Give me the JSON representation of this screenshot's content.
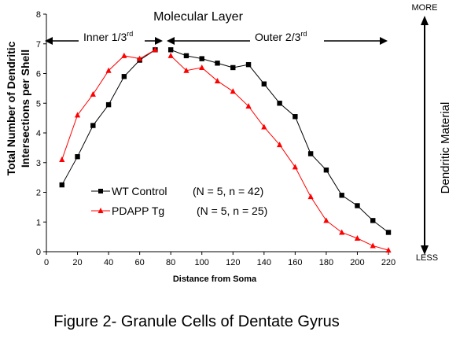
{
  "caption": "Figure 2- Granule Cells of Dentate Gyrus",
  "chart_data": {
    "type": "line",
    "title": "Molecular Layer",
    "xlabel": "Distance from Soma",
    "ylabel_line1": "Total Number of Dendritic",
    "ylabel_line2": "Intersections per Shell",
    "xlim": [
      0,
      220
    ],
    "ylim": [
      0,
      8
    ],
    "xticks": [
      0,
      20,
      40,
      60,
      80,
      100,
      120,
      140,
      160,
      180,
      200,
      220
    ],
    "yticks": [
      0,
      1,
      2,
      3,
      4,
      5,
      6,
      7,
      8
    ],
    "x": [
      10,
      20,
      30,
      40,
      50,
      60,
      70,
      80,
      90,
      100,
      110,
      120,
      130,
      140,
      150,
      160,
      170,
      180,
      190,
      200,
      210,
      220
    ],
    "segment_break_after_x": 70,
    "series": [
      {
        "name": "WT Control",
        "legend_stats": "(N = 5, n = 42)",
        "color": "#000000",
        "marker": "square",
        "values": [
          2.25,
          3.2,
          4.25,
          4.95,
          5.9,
          6.45,
          6.8,
          6.8,
          6.6,
          6.5,
          6.35,
          6.2,
          6.3,
          5.65,
          5.0,
          4.55,
          3.3,
          2.75,
          1.9,
          1.55,
          1.05,
          0.65
        ]
      },
      {
        "name": "PDAPP Tg",
        "legend_stats": "(N = 5, n = 25)",
        "color": "#ff0000",
        "marker": "triangle",
        "values": [
          3.1,
          4.6,
          5.3,
          6.1,
          6.6,
          6.5,
          6.8,
          6.6,
          6.1,
          6.2,
          5.75,
          5.4,
          4.9,
          4.2,
          3.6,
          2.85,
          1.85,
          1.05,
          0.65,
          0.45,
          0.2,
          0.05
        ]
      }
    ],
    "annotations": {
      "inner_label": "Inner 1/3",
      "inner_sup": "rd",
      "outer_label": "Outer 2/3",
      "outer_sup": "rd",
      "axis_right_label": "Dendritic Material",
      "axis_right_top": "MORE",
      "axis_right_bottom": "LESS"
    },
    "grid": false,
    "legend_position": "lower-left"
  }
}
